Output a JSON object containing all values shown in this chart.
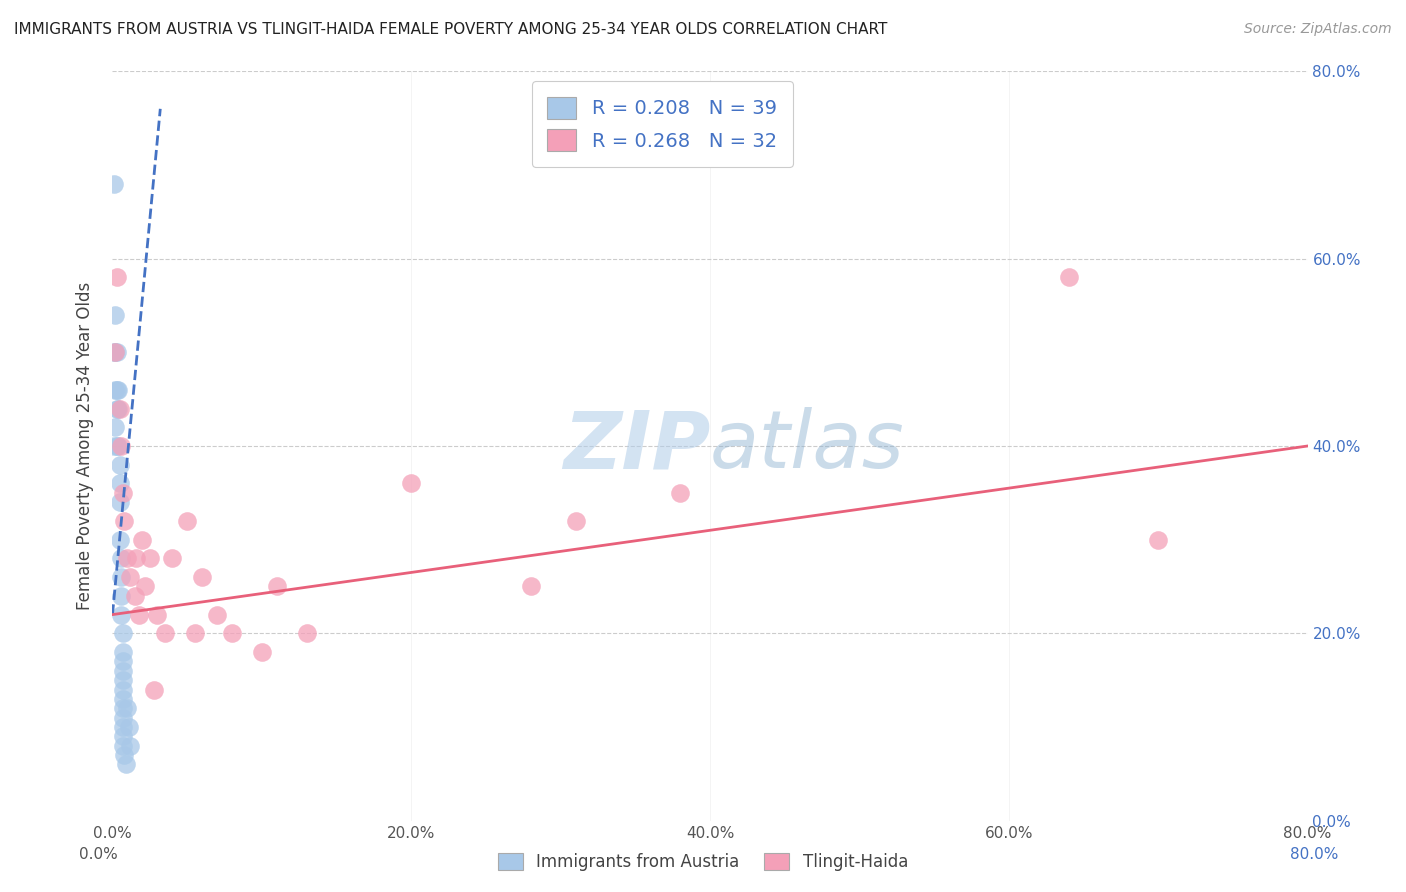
{
  "title": "IMMIGRANTS FROM AUSTRIA VS TLINGIT-HAIDA FEMALE POVERTY AMONG 25-34 YEAR OLDS CORRELATION CHART",
  "source": "Source: ZipAtlas.com",
  "ylabel": "Female Poverty Among 25-34 Year Olds",
  "legend_label1": "Immigrants from Austria",
  "legend_label2": "Tlingit-Haida",
  "r1": 0.208,
  "n1": 39,
  "r2": 0.268,
  "n2": 32,
  "color1": "#a8c8e8",
  "color2": "#f4a0b8",
  "trendline1_color": "#4472c4",
  "trendline2_color": "#e8607a",
  "watermark_zip": "ZIP",
  "watermark_atlas": "atlas",
  "xlim": [
    0.0,
    0.8
  ],
  "ylim": [
    0.0,
    0.8
  ],
  "xticks": [
    0.0,
    0.2,
    0.4,
    0.6,
    0.8
  ],
  "yticks": [
    0.0,
    0.2,
    0.4,
    0.6,
    0.8
  ],
  "blue_x": [
    0.001,
    0.001,
    0.001,
    0.002,
    0.002,
    0.002,
    0.002,
    0.003,
    0.003,
    0.003,
    0.003,
    0.004,
    0.004,
    0.004,
    0.005,
    0.005,
    0.005,
    0.005,
    0.006,
    0.006,
    0.006,
    0.006,
    0.007,
    0.007,
    0.007,
    0.007,
    0.007,
    0.007,
    0.007,
    0.007,
    0.007,
    0.007,
    0.007,
    0.007,
    0.008,
    0.009,
    0.01,
    0.011,
    0.012
  ],
  "blue_y": [
    0.68,
    0.5,
    0.4,
    0.54,
    0.5,
    0.46,
    0.42,
    0.5,
    0.46,
    0.44,
    0.4,
    0.46,
    0.44,
    0.4,
    0.38,
    0.36,
    0.34,
    0.3,
    0.28,
    0.26,
    0.24,
    0.22,
    0.2,
    0.18,
    0.17,
    0.16,
    0.15,
    0.14,
    0.13,
    0.12,
    0.11,
    0.1,
    0.09,
    0.08,
    0.07,
    0.06,
    0.12,
    0.1,
    0.08
  ],
  "pink_x": [
    0.002,
    0.003,
    0.005,
    0.006,
    0.007,
    0.008,
    0.01,
    0.012,
    0.015,
    0.016,
    0.018,
    0.02,
    0.022,
    0.025,
    0.028,
    0.03,
    0.035,
    0.04,
    0.05,
    0.055,
    0.06,
    0.07,
    0.08,
    0.1,
    0.11,
    0.13,
    0.2,
    0.28,
    0.31,
    0.38,
    0.64,
    0.7
  ],
  "pink_y": [
    0.5,
    0.58,
    0.44,
    0.4,
    0.35,
    0.32,
    0.28,
    0.26,
    0.24,
    0.28,
    0.22,
    0.3,
    0.25,
    0.28,
    0.14,
    0.22,
    0.2,
    0.28,
    0.32,
    0.2,
    0.26,
    0.22,
    0.2,
    0.18,
    0.25,
    0.2,
    0.36,
    0.25,
    0.32,
    0.35,
    0.58,
    0.3
  ],
  "blue_trendline_x0": 0.0,
  "blue_trendline_x1": 0.032,
  "blue_trendline_y0": 0.22,
  "blue_trendline_y1": 0.76,
  "pink_trendline_x0": 0.0,
  "pink_trendline_x1": 0.8,
  "pink_trendline_y0": 0.22,
  "pink_trendline_y1": 0.4
}
